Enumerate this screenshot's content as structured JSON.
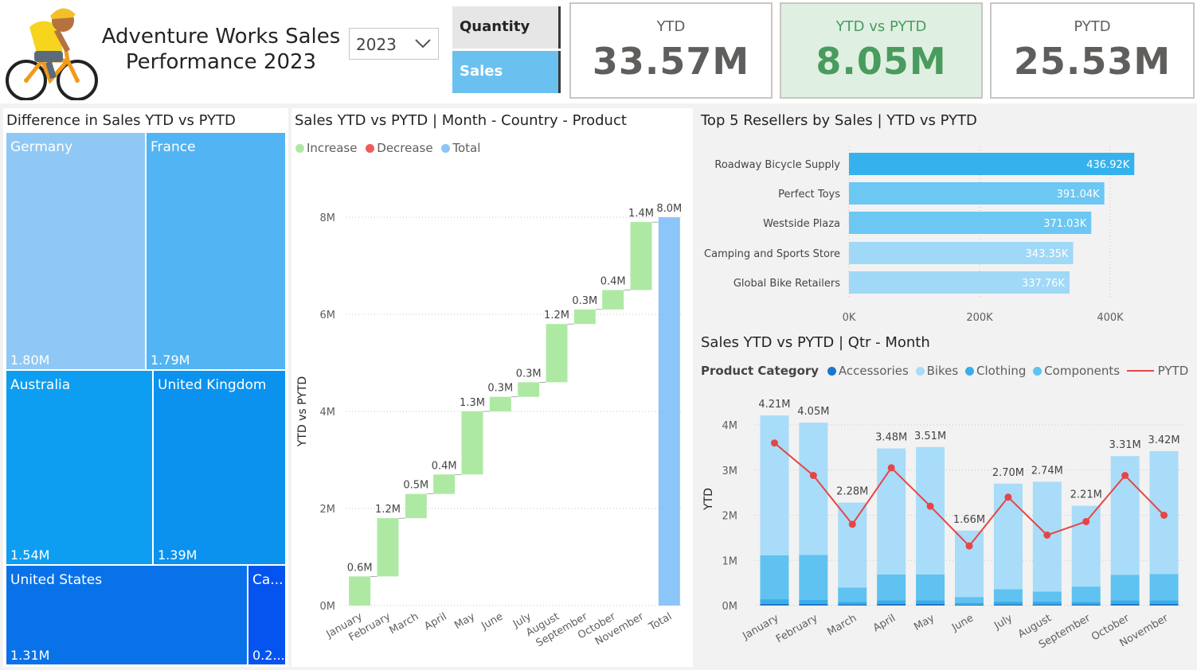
{
  "header": {
    "title_line1": "Adventure Works Sales",
    "title_line2": "Performance 2023",
    "year_value": "2023",
    "toggle_quantity": "Quantity",
    "toggle_sales": "Sales"
  },
  "kpis": [
    {
      "label": "YTD",
      "value": "33.57M"
    },
    {
      "label": "YTD vs PYTD",
      "value": "8.05M"
    },
    {
      "label": "PYTD",
      "value": "25.53M"
    }
  ],
  "colors": {
    "increase": "#aee9a4",
    "decrease": "#f05b5b",
    "total": "#8cc5f7",
    "accessories": "#1a77c9",
    "bikes": "#a8dcf8",
    "clothing": "#3aade8",
    "components": "#5fc2f0",
    "pytd": "#e64545"
  },
  "treemap": {
    "title": "Difference in Sales YTD vs PYTD",
    "items": [
      {
        "name": "Germany",
        "value": "1.80M",
        "color": "#8fc8f5"
      },
      {
        "name": "France",
        "value": "1.79M",
        "color": "#52b4f3"
      },
      {
        "name": "Australia",
        "value": "1.54M",
        "color": "#0d9ef1"
      },
      {
        "name": "United Kingdom",
        "value": "1.39M",
        "color": "#0a92ee"
      },
      {
        "name": "United States",
        "value": "1.31M",
        "color": "#0a72e8"
      },
      {
        "name": "Ca...",
        "value": "0.2...",
        "color": "#0554f0"
      }
    ]
  },
  "waterfall": {
    "title": "Sales YTD vs PYTD | Month - Country - Product",
    "legend": [
      "Increase",
      "Decrease",
      "Total"
    ]
  },
  "resellers": {
    "title": "Top 5 Resellers by Sales | YTD vs PYTD"
  },
  "combo": {
    "title": "Sales YTD vs PYTD | Qtr - Month",
    "legend_title": "Product Category",
    "legend": [
      "Accessories",
      "Bikes",
      "Clothing",
      "Components",
      "PYTD"
    ]
  },
  "chart_data": [
    {
      "type": "bar",
      "subtype": "waterfall",
      "title": "Sales YTD vs PYTD | Month - Country - Product",
      "ylabel": "YTD vs PYTD",
      "ylim": [
        0,
        8
      ],
      "yticks": [
        "0M",
        "2M",
        "4M",
        "6M",
        "8M"
      ],
      "categories": [
        "January",
        "February",
        "March",
        "April",
        "May",
        "June",
        "July",
        "August",
        "September",
        "October",
        "November",
        "Total"
      ],
      "values": [
        0.6,
        1.2,
        0.5,
        0.4,
        1.3,
        0.3,
        0.3,
        1.2,
        0.3,
        0.4,
        1.4,
        8.0
      ],
      "labels": [
        "0.6M",
        "1.2M",
        "0.5M",
        "0.4M",
        "1.3M",
        "0.3M",
        "0.3M",
        "1.2M",
        "0.3M",
        "0.4M",
        "1.4M",
        "8.0M"
      ]
    },
    {
      "type": "bar",
      "orientation": "horizontal",
      "title": "Top 5 Resellers by Sales | YTD vs PYTD",
      "categories": [
        "Roadway Bicycle Supply",
        "Perfect Toys",
        "Westside Plaza",
        "Camping and Sports Store",
        "Global Bike Retailers"
      ],
      "values": [
        436.92,
        391.04,
        371.03,
        343.35,
        337.76
      ],
      "labels": [
        "436.92K",
        "391.04K",
        "371.03K",
        "343.35K",
        "337.76K"
      ],
      "colors": [
        "#35b2ee",
        "#6cc7f3",
        "#6cc7f3",
        "#9fd9f7",
        "#9fd9f7"
      ],
      "xlim": [
        0,
        450
      ],
      "xticks": [
        "0K",
        "200K",
        "400K"
      ]
    },
    {
      "type": "bar",
      "subtype": "stacked-column-with-line",
      "title": "Sales YTD vs PYTD | Qtr - Month",
      "ylabel": "YTD",
      "ylim": [
        0,
        4.5
      ],
      "yticks": [
        "0M",
        "1M",
        "2M",
        "3M",
        "4M"
      ],
      "categories": [
        "January",
        "February",
        "March",
        "April",
        "May",
        "June",
        "July",
        "August",
        "September",
        "October",
        "November"
      ],
      "totals": [
        "4.21M",
        "4.05M",
        "2.28M",
        "3.48M",
        "3.51M",
        "1.66M",
        "2.70M",
        "2.74M",
        "2.21M",
        "3.31M",
        "3.42M"
      ],
      "series": [
        {
          "name": "Accessories",
          "values": [
            0.04,
            0.04,
            0.03,
            0.04,
            0.04,
            0.02,
            0.03,
            0.03,
            0.03,
            0.04,
            0.04
          ]
        },
        {
          "name": "Clothing",
          "values": [
            0.1,
            0.09,
            0.05,
            0.08,
            0.08,
            0.04,
            0.06,
            0.06,
            0.05,
            0.08,
            0.08
          ]
        },
        {
          "name": "Components",
          "values": [
            0.97,
            0.99,
            0.32,
            0.57,
            0.57,
            0.13,
            0.27,
            0.22,
            0.34,
            0.56,
            0.58
          ]
        },
        {
          "name": "Bikes",
          "values": [
            3.1,
            2.93,
            1.88,
            2.79,
            2.82,
            1.47,
            2.34,
            2.43,
            1.79,
            2.63,
            2.72
          ]
        }
      ],
      "line": {
        "name": "PYTD",
        "values": [
          3.6,
          2.88,
          1.8,
          3.05,
          2.2,
          1.32,
          2.4,
          1.56,
          1.86,
          2.88,
          2.0
        ]
      }
    }
  ]
}
